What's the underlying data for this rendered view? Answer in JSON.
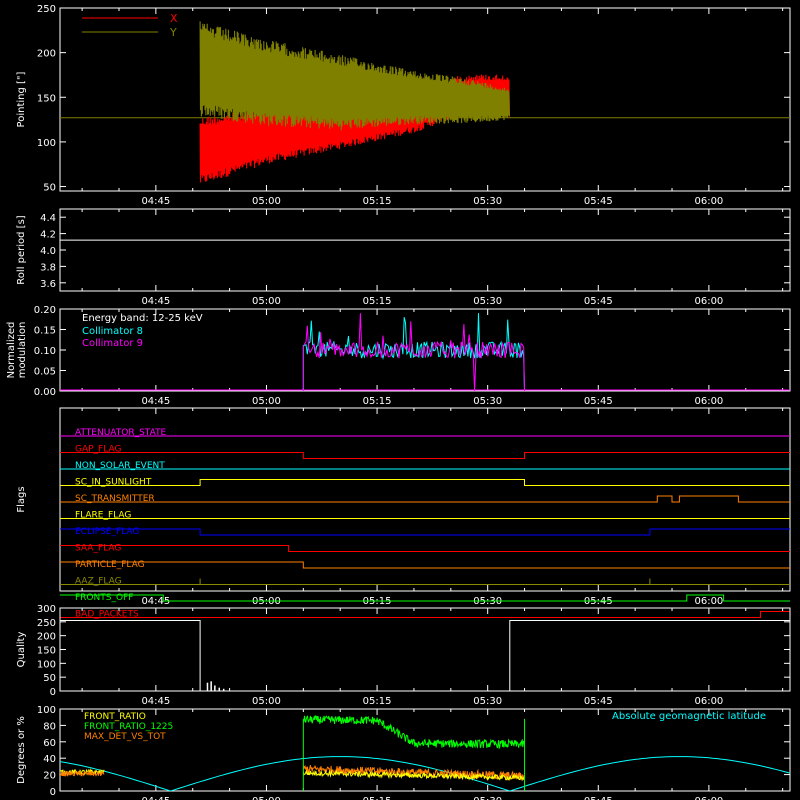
{
  "colors": {
    "background": "#000000",
    "axis": "#ffffff",
    "red": "#ff0000",
    "olive": "#808000",
    "cyan": "#00ffff",
    "magenta": "#ff00ff",
    "white": "#ffffff",
    "green": "#00ff00",
    "orange": "#ff8000",
    "yellow": "#ffff00",
    "blue": "#0000ff",
    "brown": "#8b8b00"
  },
  "chart_data": [
    {
      "type": "line",
      "ylabel": "Pointing [\"]",
      "xlim": [
        "04:32",
        "06:11"
      ],
      "ylim": [
        45,
        250
      ],
      "yticks": [
        50,
        100,
        150,
        200,
        250
      ],
      "xticks": [
        "04:45",
        "05:00",
        "05:15",
        "05:30",
        "05:45",
        "06:00"
      ],
      "legend": [
        "X",
        "Y"
      ],
      "series": [
        {
          "name": "X",
          "color": "#ff0000",
          "envelope": {
            "x": [
              "04:51",
              "05:00",
              "05:10",
              "05:20",
              "05:26",
              "05:28",
              "05:33"
            ],
            "min": [
              51,
              75,
              92,
              110,
              128,
              128,
              128
            ],
            "max": [
              128,
              138,
              149,
              163,
              174,
              176,
              176
            ]
          }
        },
        {
          "name": "Y",
          "color": "#808000",
          "envelope": {
            "x": [
              "04:51",
              "05:00",
              "05:10",
              "05:20",
              "05:28",
              "05:33"
            ],
            "min": [
              128,
              118,
              113,
              120,
              121,
              125
            ],
            "max": [
              235,
              215,
              198,
              180,
              170,
              160
            ]
          }
        }
      ],
      "baseline": {
        "value": 127,
        "color": "#808000"
      }
    },
    {
      "type": "line",
      "ylabel": "Roll period [s]",
      "xlim": [
        "04:32",
        "06:11"
      ],
      "ylim": [
        3.5,
        4.5
      ],
      "yticks": [
        3.6,
        3.8,
        4.0,
        4.2,
        4.4
      ],
      "xticks": [
        "04:45",
        "05:00",
        "05:15",
        "05:30",
        "05:45",
        "06:00"
      ],
      "series": [
        {
          "name": "",
          "color": "#ffffff",
          "x": [
            "04:32",
            "06:11"
          ],
          "y": [
            4.12,
            4.12
          ]
        }
      ]
    },
    {
      "type": "line",
      "ylabel": "Normalized modulation",
      "xlim": [
        "04:32",
        "06:11"
      ],
      "ylim": [
        0,
        0.2
      ],
      "yticks": [
        0.0,
        0.05,
        0.1,
        0.15,
        0.2
      ],
      "xticks": [
        "04:45",
        "05:00",
        "05:15",
        "05:30",
        "05:45",
        "06:00"
      ],
      "annotation": "Energy band: 12-25 keV",
      "legend": [
        "Collimator 8",
        "Collimator 9"
      ],
      "series": [
        {
          "name": "Collimator 8",
          "color": "#00ffff",
          "x": [
            "05:05",
            "05:35"
          ],
          "y": [
            0.1,
            0.1
          ]
        },
        {
          "name": "Collimator 9",
          "color": "#ff00ff",
          "x": [
            "05:05",
            "05:35"
          ],
          "y": [
            0.1,
            0.1
          ]
        }
      ]
    },
    {
      "type": "line",
      "ylabel": "Flags",
      "xlim": [
        "04:32",
        "06:11"
      ],
      "xticks": [
        "04:45",
        "05:00",
        "05:15",
        "05:30",
        "05:45",
        "06:00"
      ],
      "flags": [
        {
          "name": "ATTENUATOR_STATE",
          "color": "#ff00ff",
          "steps": [
            [
              "04:32",
              0
            ]
          ]
        },
        {
          "name": "GAP_FLAG",
          "color": "#ff0000",
          "steps": [
            [
              "04:32",
              0
            ],
            [
              "05:05",
              -1
            ],
            [
              "05:35",
              0
            ]
          ]
        },
        {
          "name": "NON_SOLAR_EVENT",
          "color": "#00ffff",
          "steps": [
            [
              "04:32",
              0
            ]
          ]
        },
        {
          "name": "SC_IN_SUNLIGHT",
          "color": "#ffff00",
          "steps": [
            [
              "04:32",
              0
            ],
            [
              "04:51",
              1
            ],
            [
              "05:35",
              0
            ]
          ]
        },
        {
          "name": "SC_TRANSMITTER",
          "color": "#ff8000",
          "steps": [
            [
              "04:32",
              0
            ],
            [
              "05:53",
              1
            ],
            [
              "05:55",
              0
            ],
            [
              "05:56",
              1
            ],
            [
              "06:04",
              0
            ]
          ]
        },
        {
          "name": "FLARE_FLAG",
          "color": "#ffff00",
          "steps": [
            [
              "04:32",
              0
            ]
          ]
        },
        {
          "name": "ECLIPSE_FLAG",
          "color": "#0000ff",
          "steps": [
            [
              "04:32",
              1
            ],
            [
              "04:51",
              0
            ],
            [
              "05:52",
              1
            ]
          ]
        },
        {
          "name": "SAA_FLAG",
          "color": "#ff0000",
          "steps": [
            [
              "04:32",
              1
            ],
            [
              "05:03",
              0
            ]
          ]
        },
        {
          "name": "PARTICLE_FLAG",
          "color": "#ff8000",
          "steps": [
            [
              "04:32",
              1
            ],
            [
              "05:05",
              0
            ]
          ]
        },
        {
          "name": "AAZ_FLAG",
          "color": "#8b8b00",
          "steps": [
            [
              "04:32",
              0
            ],
            [
              "04:51",
              1
            ],
            [
              "04:51",
              0
            ],
            [
              "05:52",
              1
            ],
            [
              "05:52",
              0
            ]
          ]
        },
        {
          "name": "FRONTS_OFF",
          "color": "#00ff00",
          "steps": [
            [
              "04:32",
              1
            ],
            [
              "04:46",
              0
            ],
            [
              "05:57",
              1
            ],
            [
              "06:02",
              0
            ]
          ]
        },
        {
          "name": "BAD_PACKETS",
          "color": "#ff0000",
          "steps": [
            [
              "04:32",
              0
            ],
            [
              "06:07",
              1
            ]
          ]
        }
      ]
    },
    {
      "type": "line",
      "ylabel": "Quality",
      "xlim": [
        "04:32",
        "06:11"
      ],
      "ylim": [
        0,
        300
      ],
      "yticks": [
        0,
        50,
        100,
        150,
        200,
        250,
        300
      ],
      "xticks": [
        "04:45",
        "05:00",
        "05:15",
        "05:30",
        "05:45",
        "06:00"
      ],
      "series": [
        {
          "name": "",
          "color": "#ffffff",
          "x": [
            "04:32",
            "04:51",
            "04:51",
            "05:33",
            "05:33",
            "06:11"
          ],
          "y": [
            255,
            255,
            0,
            0,
            255,
            255
          ]
        }
      ]
    },
    {
      "type": "line",
      "ylabel": "Degrees or %",
      "xlim": [
        "04:32",
        "06:11"
      ],
      "ylim": [
        0,
        100
      ],
      "yticks": [
        0,
        20,
        40,
        60,
        80,
        100
      ],
      "xticks": [
        "04:45",
        "05:00",
        "05:15",
        "05:30",
        "05:45",
        "06:00"
      ],
      "legend": [
        "FRONT_RATIO",
        "FRONT_RATIO_1225",
        "MAX_DET_VS_TOT"
      ],
      "annotation": "Absolute geomagnetic latitude",
      "series": [
        {
          "name": "FRONT_RATIO",
          "color": "#ffff00",
          "x": [
            "04:32",
            "04:38"
          ],
          "y": [
            23,
            23
          ]
        },
        {
          "name": "FRONT_RATIO_1225",
          "color": "#00ff00",
          "x": [
            "05:05",
            "05:15",
            "05:20",
            "05:35"
          ],
          "y": [
            87,
            86,
            58,
            57
          ]
        },
        {
          "name": "MAX_DET_VS_TOT",
          "color": "#ff8000",
          "x": [
            "04:32",
            "04:38",
            "05:05",
            "05:35"
          ],
          "y": [
            22,
            22,
            27,
            18
          ]
        },
        {
          "name": "Absolute geomagnetic latitude",
          "color": "#00ffff",
          "x": [
            "04:32",
            "04:40",
            "04:47",
            "05:10",
            "05:33",
            "05:55",
            "06:11"
          ],
          "y": [
            25,
            8,
            0,
            42,
            0,
            42,
            25
          ]
        }
      ]
    }
  ]
}
